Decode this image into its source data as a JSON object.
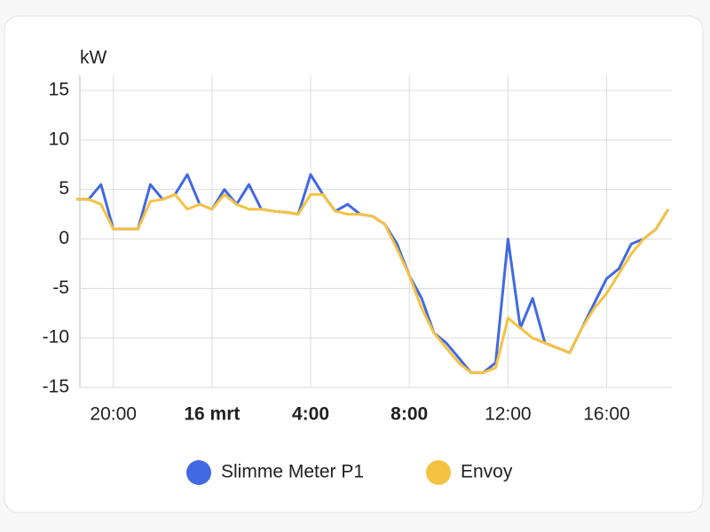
{
  "chart_data": {
    "type": "line",
    "y_label": "kW",
    "x": [
      "18:30",
      "19:00",
      "19:30",
      "20:00",
      "20:30",
      "21:00",
      "21:30",
      "22:00",
      "22:30",
      "23:00",
      "23:30",
      "00:00",
      "00:30",
      "01:00",
      "01:30",
      "02:00",
      "02:30",
      "03:00",
      "03:30",
      "04:00",
      "04:30",
      "05:00",
      "05:30",
      "06:00",
      "06:30",
      "07:00",
      "07:30",
      "08:00",
      "08:30",
      "09:00",
      "09:30",
      "10:00",
      "10:30",
      "11:00",
      "11:30",
      "12:00",
      "12:30",
      "13:00",
      "13:30",
      "14:00",
      "14:30",
      "15:00",
      "15:30",
      "16:00",
      "16:30",
      "17:00",
      "17:30",
      "18:00",
      "18:30"
    ],
    "series": [
      {
        "name": "Slimme Meter P1",
        "color": "#4169e1",
        "values": [
          4,
          4,
          5.5,
          1,
          1,
          1,
          5.5,
          4,
          4.5,
          6.5,
          3.5,
          3,
          5,
          3.5,
          5.5,
          3,
          2.8,
          2.7,
          2.5,
          6.5,
          4.5,
          2.8,
          3.5,
          2.5,
          2.3,
          1.5,
          -0.5,
          -3.7,
          -6,
          -9.5,
          -10.5,
          -12,
          -13.5,
          -13.5,
          -12.5,
          0,
          -9,
          -6,
          -10.5,
          -11,
          -11.5,
          -9,
          -6.5,
          -4,
          -3,
          -0.5,
          0,
          1,
          3
        ]
      },
      {
        "name": "Envoy",
        "color": "#f5c242",
        "values": [
          4,
          4,
          3.5,
          1,
          1,
          1,
          3.8,
          4,
          4.5,
          3,
          3.5,
          3,
          4.5,
          3.5,
          3,
          3,
          2.8,
          2.7,
          2.5,
          4.5,
          4.5,
          2.8,
          2.5,
          2.5,
          2.3,
          1.5,
          -1,
          -3.7,
          -7,
          -9.5,
          -11,
          -12.5,
          -13.5,
          -13.5,
          -13,
          -8,
          -9,
          -10,
          -10.5,
          -11,
          -11.5,
          -9,
          -7,
          -5.5,
          -3.5,
          -1.5,
          0,
          1,
          3
        ]
      }
    ],
    "xticks": [
      {
        "value": "20:00",
        "label": "20:00"
      },
      {
        "value": "00:00",
        "label": "16 mrt"
      },
      {
        "value": "04:00",
        "label": "4:00"
      },
      {
        "value": "08:00",
        "label": "8:00"
      },
      {
        "value": "12:00",
        "label": "12:00"
      },
      {
        "value": "16:00",
        "label": "16:00"
      }
    ],
    "ylim": [
      -15,
      15
    ],
    "yticks": [
      -15,
      -10,
      -5,
      0,
      5,
      10,
      15
    ],
    "grid": true
  }
}
